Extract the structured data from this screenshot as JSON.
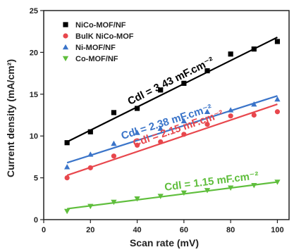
{
  "chart_data": {
    "type": "scatter",
    "xlabel": "Scan rate (mV)",
    "ylabel": "Current density (mA/cm²)",
    "xlim": [
      0,
      105
    ],
    "ylim": [
      0,
      25
    ],
    "xticks": [
      0,
      20,
      40,
      60,
      80,
      100
    ],
    "yticks": [
      0,
      5,
      10,
      15,
      20,
      25
    ],
    "grid": false,
    "legend_position": "top-left",
    "series": [
      {
        "name": "NiCo-MOF/NF",
        "color": "#000000",
        "marker": "square",
        "x": [
          10,
          20,
          30,
          40,
          50,
          60,
          70,
          80,
          90,
          100
        ],
        "y": [
          9.2,
          10.5,
          12.8,
          13.3,
          15.5,
          16.3,
          17.8,
          19.8,
          20.4,
          21.3
        ],
        "fit": [
          9.3,
          21.8
        ],
        "annotation": "Cdl = 3.43 mF.cm⁻²"
      },
      {
        "name": "BulK NiCo-MOF",
        "color": "#e8474d",
        "marker": "circle",
        "x": [
          10,
          20,
          30,
          40,
          50,
          60,
          70,
          80,
          90,
          100
        ],
        "y": [
          5.0,
          6.2,
          7.6,
          8.9,
          9.3,
          10.2,
          11.4,
          12.4,
          12.5,
          12.9
        ],
        "fit": [
          5.3,
          13.8
        ],
        "annotation": "Cdl = 2.15 mF.cm⁻²"
      },
      {
        "name": "Ni-MOF/NF",
        "color": "#3a74c9",
        "marker": "triangle-up",
        "x": [
          10,
          20,
          30,
          40,
          50,
          60,
          70,
          80,
          90,
          100
        ],
        "y": [
          6.3,
          7.8,
          9.1,
          10.4,
          10.9,
          11.8,
          12.9,
          13.1,
          13.8,
          14.4
        ],
        "fit": [
          6.8,
          14.8
        ],
        "annotation": "Cdl = 2.38 mF.cm⁻²"
      },
      {
        "name": "Co-MOF/NF",
        "color": "#5fbe3c",
        "marker": "triangle-down",
        "x": [
          10,
          20,
          30,
          40,
          50,
          60,
          70,
          80,
          90,
          100
        ],
        "y": [
          1.0,
          1.6,
          2.1,
          2.5,
          2.8,
          3.2,
          3.5,
          3.8,
          4.1,
          4.5
        ],
        "fit": [
          1.3,
          4.5
        ],
        "annotation": "Cdl = 1.15 mF.cm⁻²"
      }
    ]
  }
}
